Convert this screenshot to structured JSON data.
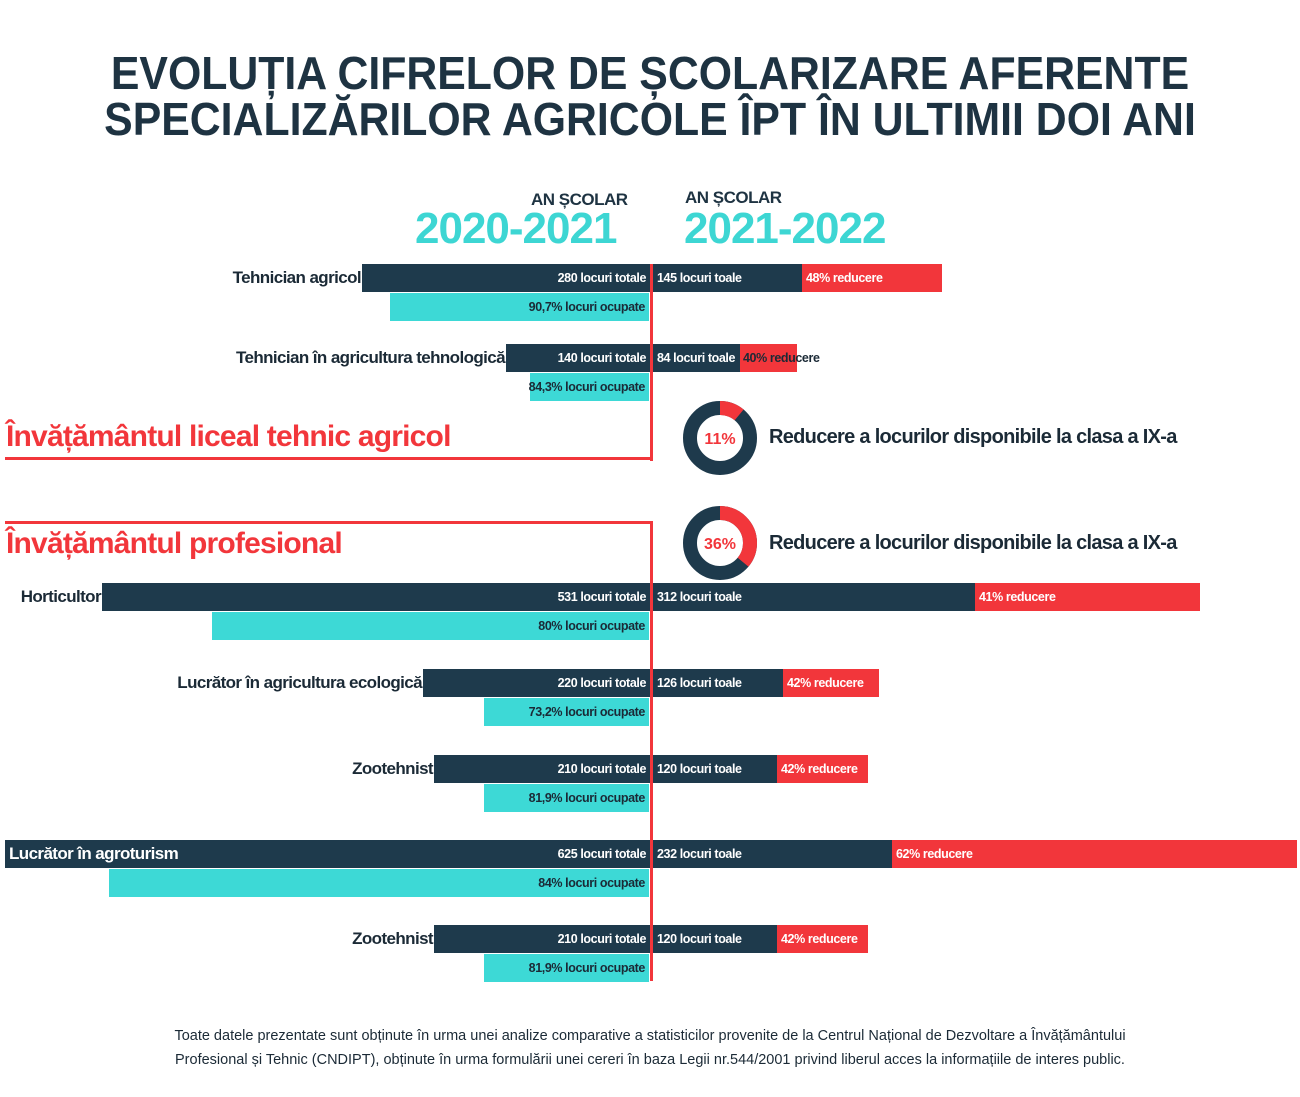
{
  "title_line1": "EVOLUȚIA CIFRELOR DE ȘCOLARIZARE AFERENTE",
  "title_line2": "SPECIALIZĂRILOR AGRICOLE ÎPT ÎN ULTIMII DOI ANI",
  "colors": {
    "dark": "#1e3a4c",
    "cyan": "#3dd9d6",
    "red": "#f2363b"
  },
  "year_left": {
    "label": "AN ȘCOLAR",
    "value": "2020-2021"
  },
  "year_right": {
    "label": "AN ȘCOLAR",
    "value": "2021-2022"
  },
  "sections": [
    {
      "title": "Învățământul liceal tehnic agricol",
      "donut_value": 11,
      "donut_label": "11%",
      "note": "Reducere a locurilor disponibile la clasa a IX-a"
    },
    {
      "title": "Învățământul profesional",
      "donut_value": 36,
      "donut_label": "36%",
      "note": "Reducere a locurilor disponibile la clasa a IX-a"
    }
  ],
  "chart_data": {
    "type": "bar",
    "categories": [
      "Tehnician agricol",
      "Tehnician în agricultura tehnologică",
      "Horticultor",
      "Lucrător în agricultura ecologică",
      "Zootehnist",
      "Lucrător în agroturism",
      "Zootehnist"
    ],
    "series": [
      {
        "name": "2020-2021 locuri totale",
        "values": [
          280,
          140,
          531,
          220,
          210,
          625,
          210
        ],
        "labels": [
          "280 locuri totale",
          "140 locuri totale",
          "531 locuri totale",
          "220 locuri totale",
          "210 locuri totale",
          "625 locuri totale",
          "210 locuri totale"
        ]
      },
      {
        "name": "locuri ocupate (%)",
        "values": [
          90.7,
          84.3,
          80,
          73.2,
          81.9,
          84,
          81.9
        ],
        "labels": [
          "90,7% locuri ocupate",
          "84,3% locuri ocupate",
          "80% locuri ocupate",
          "73,2% locuri ocupate",
          "81,9% locuri ocupate",
          "84% locuri ocupate",
          "81,9% locuri ocupate"
        ]
      },
      {
        "name": "2021-2022 locuri",
        "values": [
          145,
          84,
          312,
          126,
          120,
          232,
          120
        ],
        "labels": [
          "145 locuri toale",
          "84 locuri toale",
          "312 locuri toale",
          "126 locuri toale",
          "120 locuri toale",
          "232 locuri toale",
          "120 locuri toale"
        ]
      },
      {
        "name": "reducere (%)",
        "values": [
          48,
          40,
          41,
          42,
          42,
          62,
          42
        ],
        "labels": [
          "48% reducere",
          "40% reducere",
          "41% reducere",
          "42% reducere",
          "42% reducere",
          "62% reducere",
          "42% reducere"
        ]
      }
    ]
  },
  "footer_line1": "Toate datele prezentate sunt obținute în urma unei analize comparative a statisticilor provenite de la Centrul Național de Dezvoltare a Învățământului",
  "footer_line2": "Profesional și Tehnic (CNDIPT), obținute în urma formulării unei cereri în baza Legii nr.544/2001 privind liberul acces la informațiile de interes public."
}
